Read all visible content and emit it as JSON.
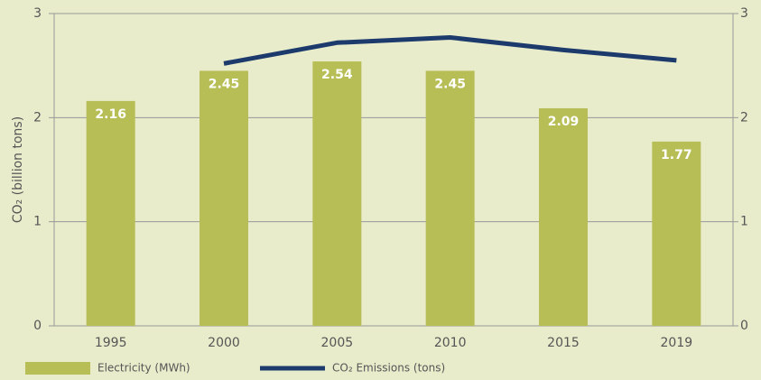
{
  "chart_data": {
    "type": "bar",
    "y_label": "CO₂ (billion tons)",
    "categories": [
      "1995",
      "2000",
      "2005",
      "2010",
      "2015",
      "2019"
    ],
    "series": [
      {
        "name": "Electricity (MWh)",
        "type": "bar",
        "color": "#b8be56",
        "values": [
          2.16,
          2.45,
          2.54,
          2.45,
          2.09,
          1.77
        ]
      },
      {
        "name": "CO₂ Emissions (tons)",
        "type": "line",
        "color": "#1d3a6c",
        "axis": "y2",
        "values": [
          null,
          2.52,
          2.72,
          2.77,
          2.65,
          2.55
        ]
      }
    ],
    "ylim": [
      0,
      3
    ],
    "yticks": [
      0,
      1,
      2,
      3
    ],
    "y2lim": [
      0,
      3
    ],
    "y2ticks": [
      0,
      1,
      2,
      3
    ],
    "grid": true
  }
}
